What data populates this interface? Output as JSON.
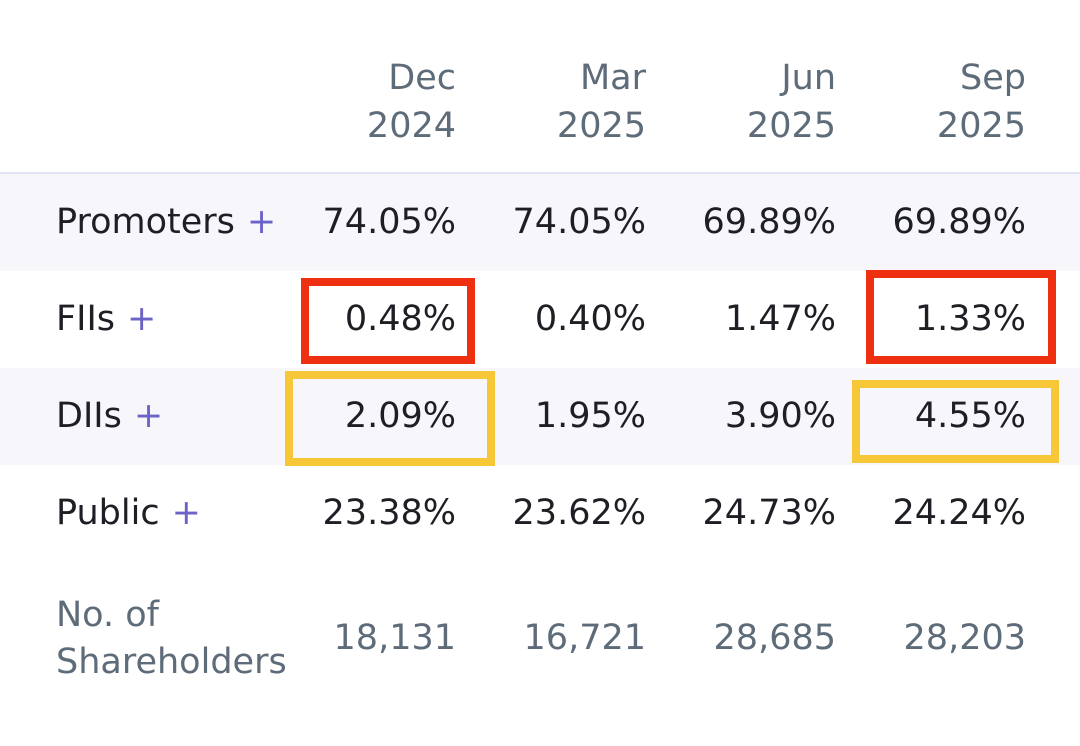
{
  "table": {
    "columns": [
      {
        "month": "Dec",
        "year": "2024"
      },
      {
        "month": "Mar",
        "year": "2025"
      },
      {
        "month": "Jun",
        "year": "2025"
      },
      {
        "month": "Sep",
        "year": "2025"
      }
    ],
    "rows": [
      {
        "label": "Promoters",
        "expand": "+",
        "values": [
          "74.05%",
          "74.05%",
          "69.89%",
          "69.89%"
        ]
      },
      {
        "label": "FIIs",
        "expand": "+",
        "values": [
          "0.48%",
          "0.40%",
          "1.47%",
          "1.33%"
        ]
      },
      {
        "label": "DIIs",
        "expand": "+",
        "values": [
          "2.09%",
          "1.95%",
          "3.90%",
          "4.55%"
        ]
      },
      {
        "label": "Public",
        "expand": "+",
        "values": [
          "23.38%",
          "23.62%",
          "24.73%",
          "24.24%"
        ]
      }
    ],
    "shareholders": {
      "label_line1": "No. of",
      "label_line2": "Shareholders",
      "values": [
        "18,131",
        "16,721",
        "28,685",
        "28,203"
      ]
    }
  },
  "highlights": {
    "fiis_color": "#ee3010",
    "diis_color": "#f6c737"
  }
}
